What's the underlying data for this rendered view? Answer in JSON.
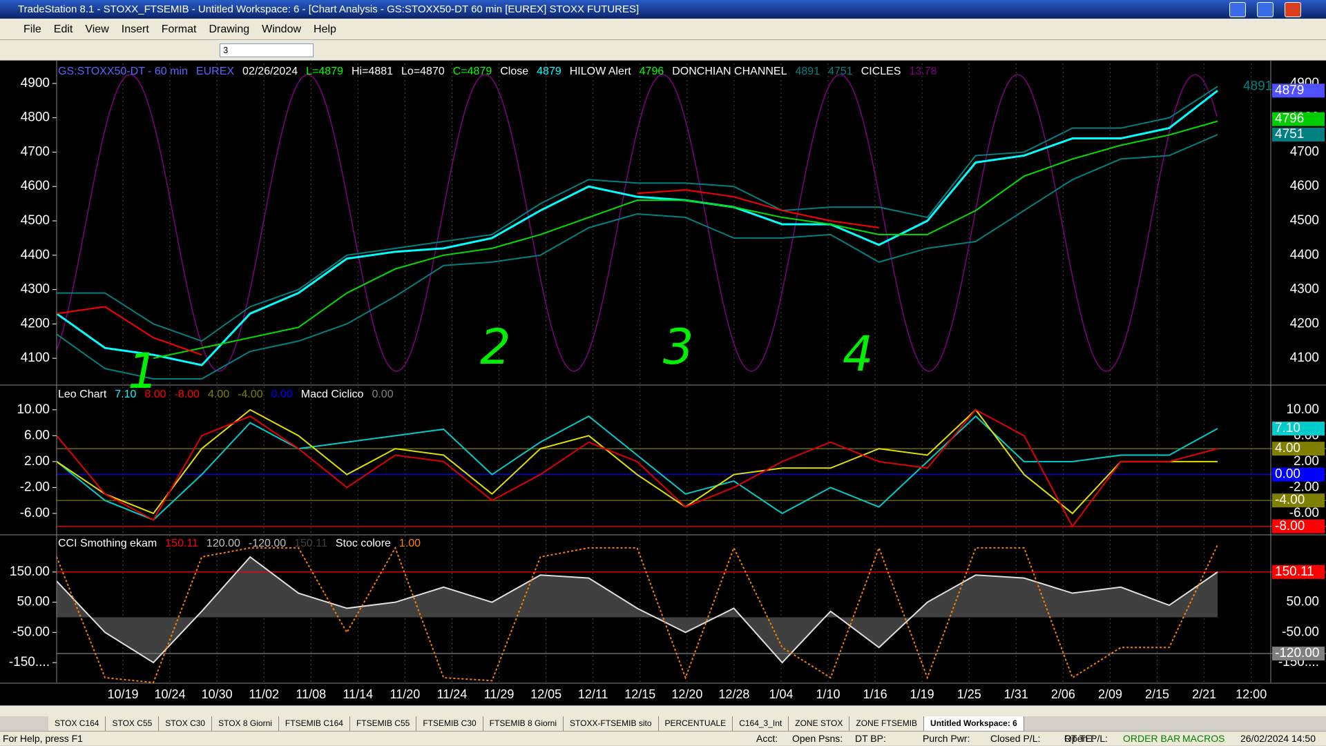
{
  "window": {
    "title": "TradeStation 8.1 - STOXX_FTSEMIB - Untitled Workspace: 6 - [Chart Analysis - GS:STOXX50-DT  60 min  [EUREX] STOXX FUTURES]",
    "menu": [
      "File",
      "Edit",
      "View",
      "Insert",
      "Format",
      "Drawing",
      "Window",
      "Help"
    ],
    "toolbar_combo": "3"
  },
  "chart": {
    "dates": [
      "10/19",
      "10/24",
      "10/30",
      "11/02",
      "11/08",
      "11/14",
      "11/20",
      "11/24",
      "11/29",
      "12/05",
      "12/11",
      "12/15",
      "12/20",
      "12/28",
      "1/04",
      "1/10",
      "1/16",
      "1/19",
      "1/25",
      "1/31",
      "2/06",
      "2/09",
      "2/15",
      "2/21",
      "12:00"
    ],
    "price_panel": {
      "header": [
        {
          "text": "GS:STOXX50-DT - 60 min",
          "color": "#6060ff"
        },
        {
          "text": "EUREX",
          "color": "#6060ff"
        },
        {
          "text": "02/26/2024",
          "color": "#ffffff"
        },
        {
          "text": "L=4879",
          "color": "#00ff00"
        },
        {
          "text": "Hi=4881",
          "color": "#ffffff"
        },
        {
          "text": "Lo=4870",
          "color": "#ffffff"
        },
        {
          "text": "C=4879",
          "color": "#00ff00"
        },
        {
          "text": "Close",
          "color": "#ffffff"
        },
        {
          "text": "4879",
          "color": "#00ffff"
        },
        {
          "text": "HILOW Alert",
          "color": "#ffffff"
        },
        {
          "text": "4796",
          "color": "#00ff00"
        },
        {
          "text": "DONCHIAN CHANNEL",
          "color": "#ffffff"
        },
        {
          "text": "4891",
          "color": "#008080"
        },
        {
          "text": "4751",
          "color": "#008080"
        },
        {
          "text": "CICLES",
          "color": "#ffffff"
        },
        {
          "text": "13.78",
          "color": "#800080"
        }
      ],
      "ylim": [
        4024,
        4958
      ],
      "yticks": [
        4900,
        4800,
        4700,
        4600,
        4500,
        4400,
        4300,
        4200,
        4100
      ],
      "series": [
        {
          "name": "close",
          "color": "#00ffff",
          "values": [
            4230,
            4130,
            4110,
            4080,
            4230,
            4290,
            4390,
            4410,
            4420,
            4450,
            4530,
            4600,
            4570,
            4560,
            4540,
            4490,
            4490,
            4430,
            4500,
            4670,
            4690,
            4740,
            4740,
            4770,
            4879
          ]
        },
        {
          "name": "donchian-upper",
          "color": "#008080",
          "values": [
            4290,
            4290,
            4200,
            4150,
            4250,
            4300,
            4400,
            4420,
            4440,
            4460,
            4550,
            4620,
            4610,
            4610,
            4600,
            4530,
            4540,
            4540,
            4510,
            4690,
            4700,
            4770,
            4770,
            4800,
            4891
          ]
        },
        {
          "name": "donchian-lower",
          "color": "#008080",
          "values": [
            4170,
            4070,
            4040,
            4040,
            4120,
            4150,
            4200,
            4280,
            4370,
            4380,
            4400,
            4480,
            4520,
            4510,
            4450,
            4450,
            4460,
            4380,
            4420,
            4440,
            4530,
            4620,
            4680,
            4690,
            4751
          ]
        },
        {
          "name": "hilow-up",
          "color": "#00e000",
          "values": [
            null,
            null,
            4100,
            4130,
            4160,
            4190,
            4290,
            4360,
            4400,
            4420,
            4460,
            4510,
            4560,
            4560,
            4540,
            4510,
            4490,
            4460,
            4460,
            4530,
            4630,
            4680,
            4720,
            4750,
            4790
          ]
        },
        {
          "name": "hilow-down",
          "color": "#ff0000",
          "values": [
            4230,
            4250,
            4160,
            4110,
            null,
            null,
            null,
            null,
            4400,
            null,
            null,
            null,
            4580,
            4590,
            4570,
            4530,
            4500,
            4480,
            null,
            null,
            null,
            null,
            null,
            null,
            null
          ]
        }
      ],
      "right_labels": [
        {
          "value": 4891,
          "label": "4891",
          "color": "#008080"
        },
        {
          "value": 4879,
          "label": "4879",
          "bg": "#5050ff"
        },
        {
          "value": 4796,
          "label": "4796",
          "bg": "#00cc00"
        },
        {
          "value": 4751,
          "label": "4751",
          "bg": "#008080"
        }
      ],
      "annotations": [
        "1",
        "2",
        "3",
        "4"
      ]
    },
    "macd_panel": {
      "header": [
        {
          "text": "Leo Chart",
          "color": "#ffffff"
        },
        {
          "text": "7.10",
          "color": "#00ffff"
        },
        {
          "text": "8.00",
          "color": "#ff0000"
        },
        {
          "text": "-8.00",
          "color": "#ff0000"
        },
        {
          "text": "4.00",
          "color": "#808000"
        },
        {
          "text": "-4.00",
          "color": "#808000"
        },
        {
          "text": "0.00",
          "color": "#0000ff"
        },
        {
          "text": "Macd Ciclico",
          "color": "#ffffff"
        },
        {
          "text": "0.00",
          "color": "#808080"
        }
      ],
      "ylim": [
        -9.2,
        13.6
      ],
      "yticks": [
        {
          "value": 10,
          "label": "10.00"
        },
        {
          "value": 6,
          "label": "6.00"
        },
        {
          "value": 2,
          "label": "2.00"
        },
        {
          "value": -2,
          "label": "-2.00"
        },
        {
          "value": -6,
          "label": "-6.00"
        }
      ],
      "series": [
        {
          "name": "leo",
          "color": "#00cccc",
          "values": [
            2,
            -4,
            -7,
            0,
            8,
            4,
            5,
            6,
            7,
            0,
            5,
            9,
            3,
            -3,
            -1,
            -6,
            -2,
            -5,
            2,
            9,
            2,
            2,
            3,
            3,
            7.1
          ]
        },
        {
          "name": "macd-yellow",
          "color": "#e0e000",
          "values": [
            2,
            -3,
            -6,
            4,
            10,
            6,
            0,
            4,
            3,
            -3,
            4,
            6,
            0,
            -5,
            0,
            1,
            1,
            4,
            3,
            10,
            0,
            -6,
            2,
            2,
            2
          ]
        },
        {
          "name": "macd-red",
          "color": "#e00000",
          "values": [
            6,
            -3,
            -7,
            6,
            9,
            4,
            -2,
            3,
            2,
            -4,
            0,
            5,
            2,
            -5,
            -2,
            2,
            5,
            2,
            1,
            10,
            6,
            -8,
            2,
            2,
            4
          ]
        }
      ],
      "right_labels": [
        {
          "value": 7.1,
          "label": "7.10",
          "bg": "#00cccc"
        },
        {
          "value": 4,
          "label": "4.00",
          "bg": "#808000"
        },
        {
          "value": 0,
          "label": "0.00",
          "bg": "#0000ff"
        },
        {
          "value": -4,
          "label": "-4.00",
          "bg": "#808000"
        },
        {
          "value": -8,
          "label": "-8.00",
          "bg": "#ff0000"
        }
      ]
    },
    "cci_panel": {
      "header": [
        {
          "text": "CCI Smothing ekam",
          "color": "#ffffff"
        },
        {
          "text": "150.11",
          "color": "#ff0000"
        },
        {
          "text": "120.00",
          "color": "#c0c0c0"
        },
        {
          "text": "-120.00",
          "color": "#c0c0c0"
        },
        {
          "text": "150.11",
          "color": "#404040"
        },
        {
          "text": "Stoc colore",
          "color": "#ffffff"
        },
        {
          "text": "1.00",
          "color": "#ff8000"
        }
      ],
      "ylim": [
        -216,
        271
      ],
      "yticks": [
        {
          "value": 150,
          "label": "150.00"
        },
        {
          "value": 50,
          "label": "50.00"
        },
        {
          "value": -50,
          "label": "-50.00"
        },
        {
          "value": -150,
          "label": "-150...."
        }
      ],
      "series": [
        {
          "name": "cci",
          "color": "#e0e0e0",
          "values": [
            120,
            -50,
            -150,
            20,
            200,
            80,
            30,
            50,
            100,
            50,
            140,
            130,
            30,
            -50,
            30,
            -150,
            20,
            -100,
            50,
            140,
            130,
            80,
            100,
            40,
            150.11
          ]
        },
        {
          "name": "stoc",
          "color": "#ff8000",
          "values": [
            200,
            -200,
            -216,
            200,
            230,
            230,
            -50,
            230,
            -200,
            -210,
            200,
            230,
            230,
            -200,
            230,
            -100,
            -200,
            230,
            -200,
            230,
            230,
            -200,
            -100,
            -100,
            240
          ]
        }
      ],
      "right_labels": [
        {
          "value": 150.11,
          "label": "150.11",
          "bg": "#ff0000"
        },
        {
          "value": -120,
          "label": "-120.00",
          "bg": "#808080"
        }
      ]
    }
  },
  "tabs": [
    "STOX C164",
    "STOX C55",
    "STOX C30",
    "STOX 8 Giorni",
    "FTSEMIB C164",
    "FTSEMIB C55",
    "FTSEMIB C30",
    "FTSEMIB 8 Giorni",
    "STOXX-FTSEMIB sito",
    "PERCENTUALE",
    "C164_3_Int",
    "ZONE STOX",
    "ZONE FTSEMIB",
    "Untitled Workspace: 6"
  ],
  "status": [
    "For Help, press F1",
    "Acct:",
    "Open Psns:",
    "DT BP:",
    "Purch Pwr:",
    "Closed P/L:",
    "RT TE:",
    "Open P/L:",
    "ORDER BAR",
    "MACROS",
    "26/02/2024 14:50"
  ]
}
